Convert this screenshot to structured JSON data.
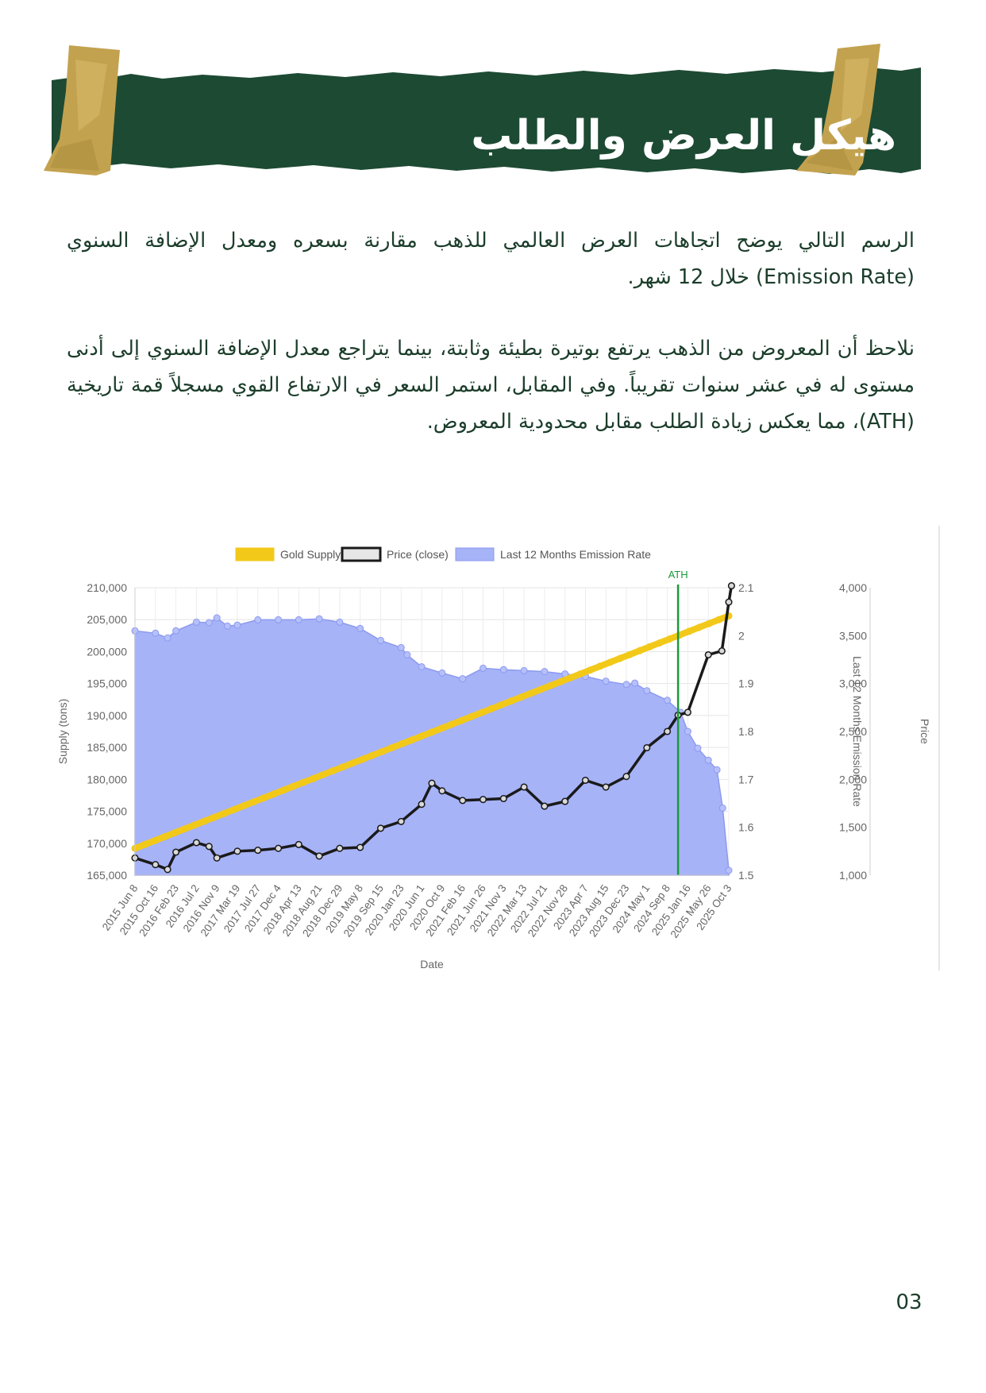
{
  "header": {
    "title": "هيكل العرض والطلب"
  },
  "body": {
    "paragraph_1": "الرسم التالي يوضح اتجاهات العرض العالمي للذهب مقارنة بسعره ومعدل الإضافة السنوي (Emission Rate) خلال 12 شهر.",
    "paragraph_2": "نلاحظ أن المعروض من الذهب يرتفع بوتيرة بطيئة وثابتة، بينما يتراجع معدل الإضافة السنوي إلى أدنى مستوى له في عشر سنوات تقريباً. وفي المقابل، استمر السعر في الارتفاع القوي مسجلاً قمة تاريخية (ATH)، مما يعكس زيادة الطلب مقابل محدودية المعروض."
  },
  "colors": {
    "banner_green": "#1d4a33",
    "tape_gold": "#c3a24f",
    "text_green": "#1b3d2a",
    "supply_yellow": "#f2c919",
    "price_black": "#1a1a1a",
    "emission_fill": "#a7b3f7",
    "emission_stroke": "#8c9af0",
    "ath_green": "#1a9a3a"
  },
  "chart_data": {
    "type": "line",
    "legend": [
      "Gold Supply",
      "Price (close)",
      "Last 12 Months Emission Rate"
    ],
    "legend_position": "top",
    "grid": true,
    "xlabel": "Date",
    "y_left_label": "Supply (tons)",
    "y_right1_label": "Last 12 Months Emission Rate",
    "y_right2_label": "Price",
    "ylim_supply": [
      165000,
      210000
    ],
    "ylim_emission": [
      1.5,
      2.1
    ],
    "ylim_price": [
      1000,
      4000
    ],
    "y_supply_ticks": [
      "210,000",
      "205,000",
      "200,000",
      "195,000",
      "190,000",
      "185,000",
      "180,000",
      "175,000",
      "170,000",
      "165,000"
    ],
    "y_emission_ticks": [
      "2.1",
      "2",
      "1.9",
      "1.8",
      "1.7",
      "1.6",
      "1.5"
    ],
    "y_price_ticks": [
      "4,000",
      "3,500",
      "3,000",
      "2,500",
      "2,000",
      "1,500",
      "1,000"
    ],
    "x_ticks": [
      "2015 Jun 8",
      "2015 Oct 16",
      "2016 Feb 23",
      "2016 Jul 2",
      "2016 Nov 9",
      "2017 Mar 19",
      "2017 Jul 27",
      "2017 Dec 4",
      "2018 Apr 13",
      "2018 Aug 21",
      "2018 Dec 29",
      "2019 May 8",
      "2019 Sep 15",
      "2020 Jan 23",
      "2020 Jun 1",
      "2020 Oct 9",
      "2021 Feb 16",
      "2021 Jun 26",
      "2021 Nov 3",
      "2022 Mar 13",
      "2022 Jul 21",
      "2022 Nov 28",
      "2023 Apr 7",
      "2023 Aug 15",
      "2023 Dec 23",
      "2024 May 1",
      "2024 Sep 8",
      "2025 Jan 16",
      "2025 May 26",
      "2025 Oct 3"
    ],
    "annotation": {
      "label": "ATH",
      "x": "2024 Nov 15"
    },
    "series": [
      {
        "name": "Gold Supply",
        "axis": "supply",
        "x": [
          "2015 Jun 8",
          "2025 Oct 3"
        ],
        "values": [
          169200,
          205600
        ]
      },
      {
        "name": "Last 12 Months Emission Rate",
        "axis": "emission",
        "x": [
          "2015 Jun 8",
          "2015 Oct 16",
          "2016 Jan 1",
          "2016 Feb 23",
          "2016 Jul 2",
          "2016 Sep 20",
          "2016 Nov 9",
          "2017 Jan 15",
          "2017 Mar 19",
          "2017 Jul 27",
          "2017 Dec 4",
          "2018 Apr 13",
          "2018 Aug 21",
          "2018 Dec 29",
          "2019 May 8",
          "2019 Sep 15",
          "2020 Jan 23",
          "2020 Mar 1",
          "2020 Jun 1",
          "2020 Oct 9",
          "2021 Feb 16",
          "2021 Jun 26",
          "2021 Nov 3",
          "2022 Mar 13",
          "2022 Jul 21",
          "2022 Nov 28",
          "2023 Apr 7",
          "2023 Aug 15",
          "2023 Dec 23",
          "2024 Feb 15",
          "2024 May 1",
          "2024 Sep 8",
          "2024 Dec 1",
          "2025 Jan 16",
          "2025 Mar 20",
          "2025 May 26",
          "2025 Jul 20",
          "2025 Aug 25",
          "2025 Oct 3"
        ],
        "values": [
          2.01,
          2.005,
          1.995,
          2.01,
          2.028,
          2.027,
          2.037,
          2.02,
          2.022,
          2.033,
          2.033,
          2.033,
          2.035,
          2.028,
          2.015,
          1.99,
          1.975,
          1.96,
          1.935,
          1.922,
          1.91,
          1.932,
          1.929,
          1.927,
          1.925,
          1.92,
          1.915,
          1.905,
          1.898,
          1.901,
          1.885,
          1.865,
          1.84,
          1.8,
          1.765,
          1.74,
          1.72,
          1.64,
          1.51
        ]
      },
      {
        "name": "Price (close)",
        "axis": "price",
        "x": [
          "2015 Jun 8",
          "2015 Oct 16",
          "2016 Jan 1",
          "2016 Feb 23",
          "2016 Jul 2",
          "2016 Sep 20",
          "2016 Nov 9",
          "2017 Mar 19",
          "2017 Jul 27",
          "2017 Dec 4",
          "2018 Apr 13",
          "2018 Aug 21",
          "2018 Dec 29",
          "2019 May 8",
          "2019 Sep 15",
          "2020 Jan 23",
          "2020 Jun 1",
          "2020 Aug 5",
          "2020 Oct 9",
          "2021 Feb 16",
          "2021 Jun 26",
          "2021 Nov 3",
          "2022 Mar 13",
          "2022 Jul 21",
          "2022 Nov 28",
          "2023 Apr 7",
          "2023 Aug 15",
          "2023 Dec 23",
          "2024 May 1",
          "2024 Sep 8",
          "2024 Nov 15",
          "2025 Jan 16",
          "2025 May 26",
          "2025 Aug 20",
          "2025 Oct 3",
          "2025 Oct 20"
        ],
        "values": [
          1180,
          1110,
          1060,
          1240,
          1340,
          1300,
          1180,
          1250,
          1260,
          1280,
          1320,
          1200,
          1280,
          1290,
          1490,
          1560,
          1740,
          1960,
          1880,
          1780,
          1790,
          1800,
          1920,
          1720,
          1770,
          1990,
          1920,
          2030,
          2330,
          2500,
          2670,
          2700,
          3300,
          3340,
          3850,
          4020
        ]
      }
    ]
  },
  "page": {
    "number": "03"
  }
}
